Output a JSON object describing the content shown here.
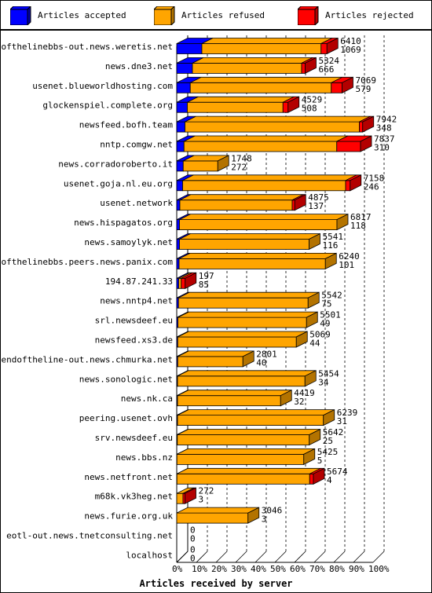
{
  "legend": {
    "accepted": {
      "label": "Articles accepted",
      "color": "#0000ff"
    },
    "refused": {
      "label": "Articles refused",
      "color": "#ffa500"
    },
    "rejected": {
      "label": "Articles rejected",
      "color": "#ff0000"
    }
  },
  "chart_data": {
    "type": "bar",
    "orientation": "horizontal",
    "stacked": true,
    "xlabel": "Articles received by server",
    "ylabel": "",
    "xlim": [
      0,
      100
    ],
    "xunit": "%",
    "xticks": [
      "0%",
      "10%",
      "20%",
      "30%",
      "40%",
      "50%",
      "60%",
      "70%",
      "80%",
      "90%",
      "100%"
    ],
    "grid": "vertical dashed",
    "legend_position": "top",
    "categories": [
      "endofthelinebbs-out.news.weretis.net",
      "news.dne3.net",
      "usenet.blueworldhosting.com",
      "glockenspiel.complete.org",
      "newsfeed.bofh.team",
      "nntp.comgw.net",
      "news.corradoroberto.it",
      "usenet.goja.nl.eu.org",
      "usenet.network",
      "news.hispagatos.org",
      "news.samoylyk.net",
      "endofthelinebbs.peers.news.panix.com",
      "194.87.241.33",
      "news.nntp4.net",
      "srl.newsdeef.eu",
      "newsfeed.xs3.de",
      "endoftheline-out.news.chmurka.net",
      "news.sonologic.net",
      "news.nk.ca",
      "peering.usenet.ovh",
      "srv.newsdeef.eu",
      "news.bbs.nz",
      "news.netfront.net",
      "m68k.vk3heg.net",
      "news.furie.org.uk",
      "eotl-out.news.tnetconsulting.net",
      "localhost"
    ],
    "total_received": [
      6410,
      5324,
      7069,
      4529,
      7942,
      7837,
      1748,
      7158,
      4875,
      6817,
      5541,
      6240,
      197,
      5542,
      5501,
      5069,
      2801,
      5454,
      4419,
      6239,
      5642,
      5425,
      5674,
      272,
      3046,
      0,
      0
    ],
    "accepted_count": [
      1069,
      666,
      579,
      508,
      348,
      310,
      272,
      246,
      137,
      118,
      116,
      101,
      85,
      75,
      49,
      44,
      40,
      34,
      32,
      31,
      25,
      5,
      4,
      3,
      3,
      0,
      0
    ],
    "series": [
      {
        "name": "Articles accepted",
        "color": "#0000ff",
        "values": [
          12.8,
          8.0,
          6.9,
          5.4,
          4.2,
          3.7,
          3.3,
          3.0,
          1.6,
          1.4,
          1.4,
          1.2,
          1.0,
          0.9,
          0.6,
          0.5,
          0.5,
          0.4,
          0.4,
          0.4,
          0.3,
          0.1,
          0.1,
          0.0,
          0.0,
          0,
          0
        ]
      },
      {
        "name": "Articles refused",
        "color": "#ffa500",
        "values": [
          60.7,
          55.6,
          71.8,
          48.7,
          88.8,
          77.8,
          17.6,
          83.0,
          57.2,
          80.2,
          66.0,
          74.5,
          1.3,
          66.0,
          65.5,
          60.4,
          33.2,
          64.9,
          52.5,
          74.3,
          67.2,
          64.6,
          67.6,
          3.2,
          36.3,
          0,
          0
        ]
      },
      {
        "name": "Articles rejected",
        "color": "#ff0000",
        "values": [
          3.0,
          1.8,
          5.5,
          2.6,
          1.7,
          12.1,
          0,
          2.3,
          1.3,
          0,
          0,
          0,
          2.0,
          0,
          0,
          0,
          0,
          0,
          0,
          0,
          0,
          0,
          1.9,
          1.0,
          0,
          0,
          0
        ]
      }
    ]
  }
}
